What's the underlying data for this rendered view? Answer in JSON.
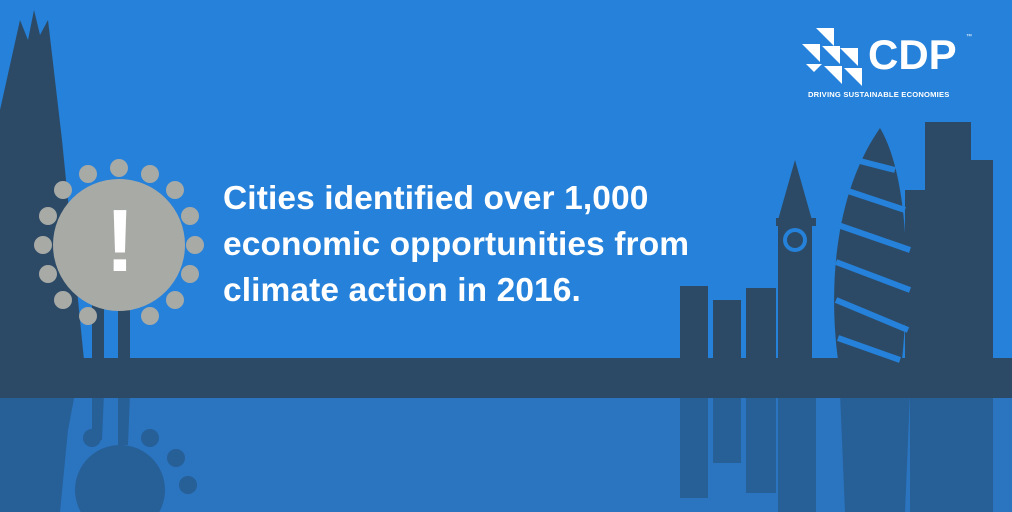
{
  "headline": {
    "lines": [
      "Cities identified over 1,000",
      "economic opportunities from",
      "climate action in 2016."
    ]
  },
  "logo": {
    "wordmark": "CDP",
    "trademark": "™",
    "tagline": "DRIVING SUSTAINABLE ECONOMIES"
  },
  "alert_badge": {
    "symbol": "!"
  },
  "colors": {
    "sky": "#2581d9",
    "skyline": "#2c4a66",
    "reflection": "#275f97",
    "badge": "#a8aaa6",
    "text": "#ffffff"
  },
  "icons": [
    "alert-badge-icon",
    "cdp-logo-icon",
    "skyline-illustration"
  ]
}
